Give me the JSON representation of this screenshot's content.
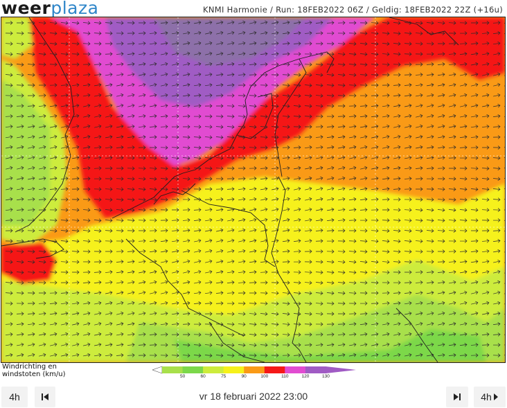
{
  "header": {
    "logo_part1": "weer",
    "logo_part2": "plaza",
    "run_info": "KNMI Harmonie / Run: 18FEB2022 06Z / Geldig: 18FEB2022 22Z (+16u)"
  },
  "map": {
    "variable": "wind gusts with wind direction arrows",
    "arrow_direction": "east (west-to-east flow)"
  },
  "legend": {
    "title": "Windrichting en\nwindstoten  (km/u)",
    "bins": [
      {
        "label": "50",
        "color": "#a8e04b"
      },
      {
        "label": "60",
        "color": "#7cd84a"
      },
      {
        "label": "75",
        "color": "#cdec3c"
      },
      {
        "label": "90",
        "color": "#f6f11a"
      },
      {
        "label": "100",
        "color": "#fa9a16"
      },
      {
        "label": "110",
        "color": "#f51818"
      },
      {
        "label": "120",
        "color": "#e14cd1"
      },
      {
        "label": "130",
        "color": "#a05bc4"
      }
    ]
  },
  "controls": {
    "step_back_label": "4h",
    "step_forward_label": "4h",
    "datetime": "vr 18 februari 2022 23:00"
  }
}
